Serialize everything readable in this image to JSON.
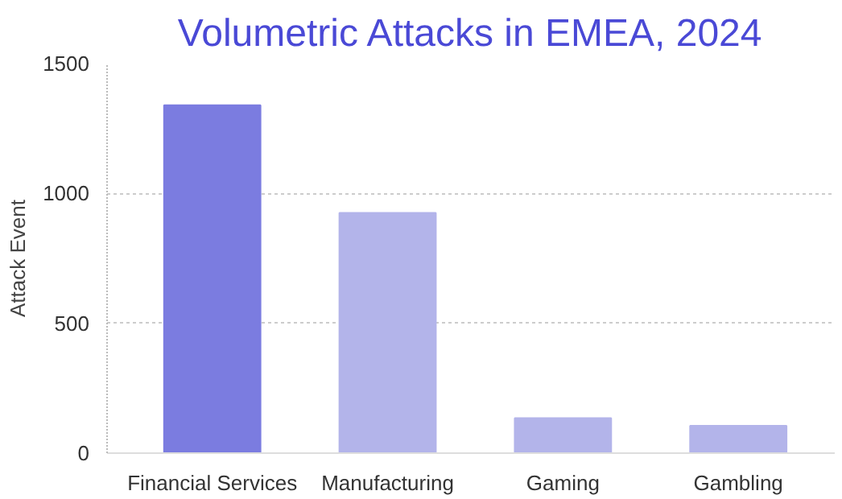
{
  "chart_data": {
    "type": "bar",
    "title": "Volumetric Attacks in EMEA, 2024",
    "ylabel": "Attack Event",
    "categories": [
      "Financial Services",
      "Manufacturing",
      "Gaming",
      "Gambling"
    ],
    "values": [
      1340,
      925,
      135,
      105
    ],
    "colors": [
      "#7b7ce0",
      "#b3b4ea",
      "#b3b4ea",
      "#b3b4ea"
    ],
    "ylim": [
      0,
      1500
    ],
    "yticks": [
      0,
      500,
      1000,
      1500
    ],
    "grid": "y"
  }
}
